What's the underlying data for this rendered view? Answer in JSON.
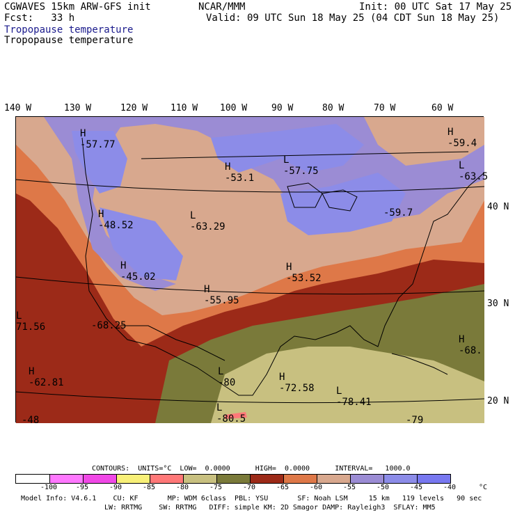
{
  "header": {
    "title": "CGWAVES 15km ARW-GFS init",
    "forecast": "Fcst:   33 h",
    "center": "NCAR/MMM",
    "init": "Init: 00 UTC Sat 17 May 25",
    "valid": "Valid: 09 UTC Sun 18 May 25 (04 CDT Sun 18 May 25)",
    "field_shaded": "Tropopause temperature",
    "field_contour": "Tropopause temperature"
  },
  "longitude_labels": [
    "140 W",
    "130 W",
    "120 W",
    "110 W",
    "100 W",
    "90 W",
    "80 W",
    "70 W",
    "60 W"
  ],
  "latitude_labels": [
    "40 N",
    "30 N",
    "20 N"
  ],
  "map_labels": [
    {
      "type": "H",
      "value": "-57.77"
    },
    {
      "type": "H",
      "value": "-53.1"
    },
    {
      "type": "L",
      "value": "-57.75"
    },
    {
      "type": "H",
      "value": "-59.4"
    },
    {
      "type": "L",
      "value": "-63.5"
    },
    {
      "type": "H",
      "value": "-48.52"
    },
    {
      "type": "L",
      "value": "-63.29"
    },
    {
      "type": "",
      "value": "-59.7"
    },
    {
      "type": "H",
      "value": "-45.02"
    },
    {
      "type": "H",
      "value": "-53.52"
    },
    {
      "type": "H",
      "value": "-55.95"
    },
    {
      "type": "L",
      "value": "71.56"
    },
    {
      "type": "",
      "value": "-68.25"
    },
    {
      "type": "H",
      "value": "-68."
    },
    {
      "type": "H",
      "value": "-62.81"
    },
    {
      "type": "L",
      "value": "-80"
    },
    {
      "type": "H",
      "value": "-72.58"
    },
    {
      "type": "L",
      "value": "-78.41"
    },
    {
      "type": "L",
      "value": "-80.5"
    },
    {
      "type": "",
      "value": "-48"
    },
    {
      "type": "",
      "value": "-79"
    }
  ],
  "contours_line": "CONTOURS:  UNITS=°C  LOW=  0.0000      HIGH=  0.0000      INTERVAL=   1000.0",
  "colorbar": {
    "unit": "°C",
    "ticks": [
      "-100",
      "-95",
      "-90",
      "-85",
      "-80",
      "-75",
      "-70",
      "-65",
      "-60",
      "-55",
      "-50",
      "-45",
      "-40"
    ],
    "colors": [
      "#ffffff",
      "#ff78ff",
      "#f048e6",
      "#f8f078",
      "#ff7878",
      "#c8c080",
      "#7a7a3a",
      "#9c2a18",
      "#de7848",
      "#d8a88e",
      "#9b8cd4",
      "#8c8ce8",
      "#7878f0"
    ]
  },
  "model_info": {
    "line1": "Model Info: V4.6.1    CU: KF       MP: WDM 6class  PBL: YSU       SF: Noah LSM     15 km   119 levels   90 sec",
    "line2": "LW: RRTMG    SW: RRTMG   DIFF: simple KM: 2D Smagor DAMP: Rayleigh3  SFLAY: MM5"
  }
}
